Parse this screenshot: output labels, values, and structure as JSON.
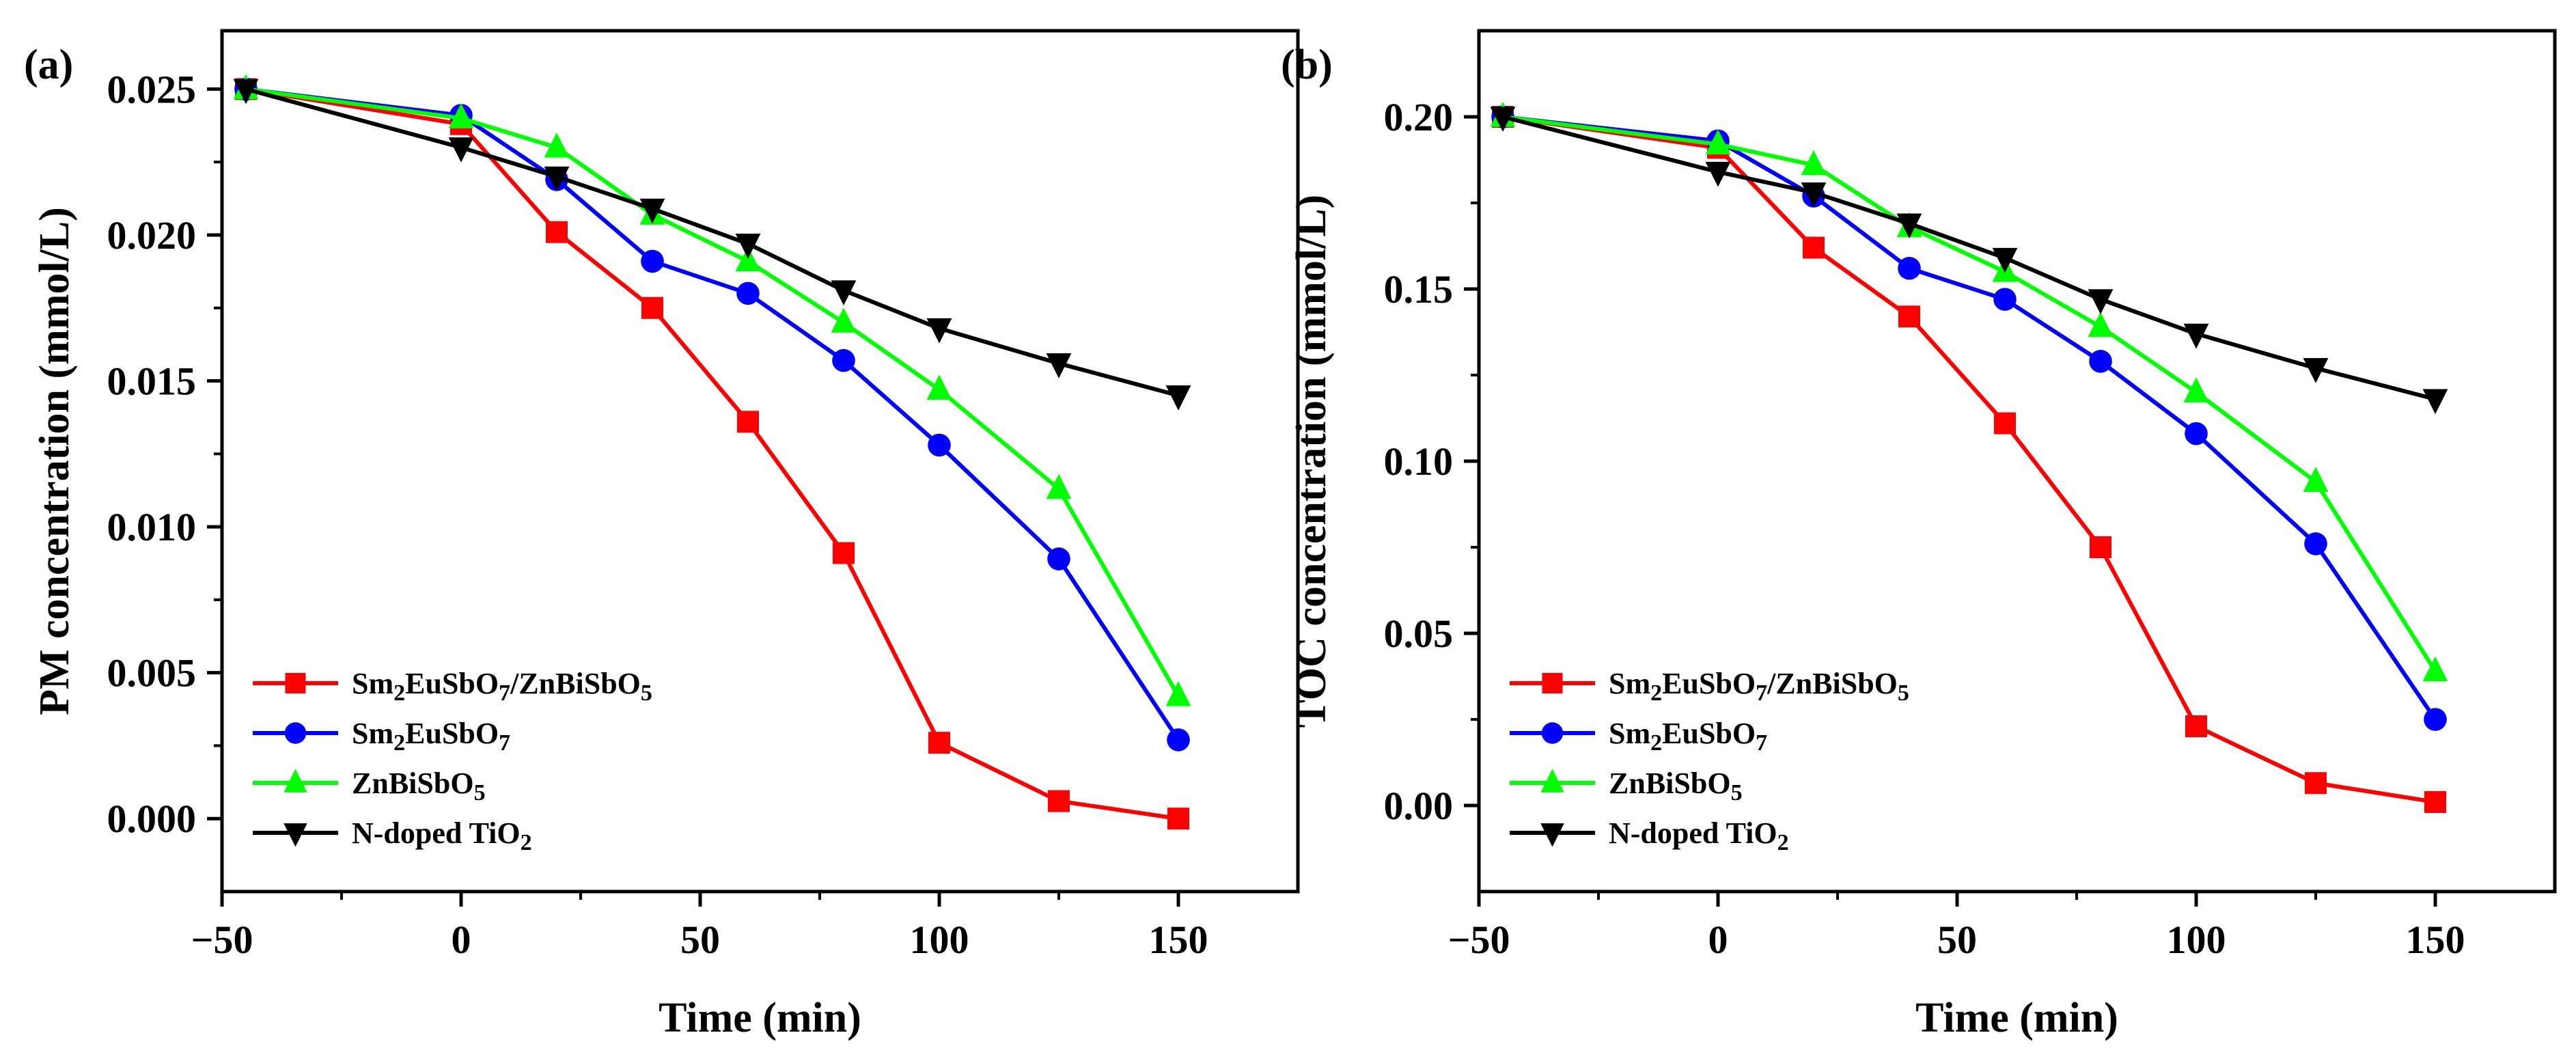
{
  "chart_data": [
    {
      "type": "line",
      "panel_label": "(a)",
      "xlabel": "Time (min)",
      "ylabel": "PM concentration (mmol/L)",
      "xlim": [
        -50,
        175
      ],
      "ylim": [
        -0.0025,
        0.027
      ],
      "xticks": [
        -50,
        0,
        50,
        100,
        150
      ],
      "xtick_labels": [
        "−50",
        "0",
        "50",
        "100",
        "150"
      ],
      "yticks": [
        0,
        0.005,
        0.01,
        0.015,
        0.02,
        0.025
      ],
      "ytick_labels": [
        "0.000",
        "0.005",
        "0.010",
        "0.015",
        "0.020",
        "0.025"
      ],
      "legend_position": "bottom-left",
      "x": [
        -45,
        0,
        20,
        40,
        60,
        80,
        100,
        125,
        150
      ],
      "series": [
        {
          "name": "Sm2EuSbO7/ZnBiSbO5",
          "label_parts": [
            [
              "Sm",
              ""
            ],
            [
              "2",
              "sub"
            ],
            [
              "EuSbO",
              ""
            ],
            [
              "7",
              "sub"
            ],
            [
              "/ZnBiSbO",
              ""
            ],
            [
              "5",
              "sub"
            ]
          ],
          "color": "#ff0000",
          "marker": "square",
          "values": [
            0.025,
            0.0238,
            0.0201,
            0.0175,
            0.0136,
            0.0091,
            0.0026,
            0.0006,
            0.0
          ]
        },
        {
          "name": "Sm2EuSbO7",
          "label_parts": [
            [
              "Sm",
              ""
            ],
            [
              "2",
              "sub"
            ],
            [
              "EuSbO",
              ""
            ],
            [
              "7",
              "sub"
            ]
          ],
          "color": "#0000ff",
          "marker": "circle",
          "values": [
            0.025,
            0.0241,
            0.0219,
            0.0191,
            0.018,
            0.0157,
            0.0128,
            0.0089,
            0.0027
          ]
        },
        {
          "name": "ZnBiSbO5",
          "label_parts": [
            [
              "ZnBiSbO",
              ""
            ],
            [
              "5",
              "sub"
            ]
          ],
          "color": "#00ff00",
          "marker": "triangle-up",
          "values": [
            0.025,
            0.024,
            0.023,
            0.0207,
            0.0191,
            0.017,
            0.0147,
            0.0113,
            0.0042
          ]
        },
        {
          "name": "N-doped TiO2",
          "label_parts": [
            [
              "N-doped TiO",
              ""
            ],
            [
              "2",
              "sub"
            ]
          ],
          "color": "#000000",
          "marker": "triangle-down",
          "values": [
            0.025,
            0.023,
            0.022,
            0.0209,
            0.0197,
            0.0181,
            0.0168,
            0.0156,
            0.0145
          ]
        }
      ]
    },
    {
      "type": "line",
      "panel_label": "(b)",
      "xlabel": "Time (min)",
      "ylabel": "TOC concentration (mmol/L)",
      "xlim": [
        -50,
        175
      ],
      "ylim": [
        -0.025,
        0.225
      ],
      "xticks": [
        -50,
        0,
        50,
        100,
        150
      ],
      "xtick_labels": [
        "−50",
        "0",
        "50",
        "100",
        "150"
      ],
      "yticks": [
        0,
        0.05,
        0.1,
        0.15,
        0.2
      ],
      "ytick_labels": [
        "0.00",
        "0.05",
        "0.10",
        "0.15",
        "0.20"
      ],
      "legend_position": "bottom-left",
      "x": [
        -45,
        0,
        20,
        40,
        60,
        80,
        100,
        125,
        150
      ],
      "series": [
        {
          "name": "Sm2EuSbO7/ZnBiSbO5",
          "label_parts": [
            [
              "Sm",
              ""
            ],
            [
              "2",
              "sub"
            ],
            [
              "EuSbO",
              ""
            ],
            [
              "7",
              "sub"
            ],
            [
              "/ZnBiSbO",
              ""
            ],
            [
              "5",
              "sub"
            ]
          ],
          "color": "#ff0000",
          "marker": "square",
          "values": [
            0.2,
            0.191,
            0.162,
            0.142,
            0.111,
            0.075,
            0.023,
            0.0065,
            0.001
          ]
        },
        {
          "name": "Sm2EuSbO7",
          "label_parts": [
            [
              "Sm",
              ""
            ],
            [
              "2",
              "sub"
            ],
            [
              "EuSbO",
              ""
            ],
            [
              "7",
              "sub"
            ]
          ],
          "color": "#0000ff",
          "marker": "circle",
          "values": [
            0.2,
            0.193,
            0.177,
            0.156,
            0.147,
            0.129,
            0.108,
            0.076,
            0.025
          ]
        },
        {
          "name": "ZnBiSbO5",
          "label_parts": [
            [
              "ZnBiSbO",
              ""
            ],
            [
              "5",
              "sub"
            ]
          ],
          "color": "#00ff00",
          "marker": "triangle-up",
          "values": [
            0.2,
            0.192,
            0.186,
            0.168,
            0.155,
            0.139,
            0.12,
            0.094,
            0.039
          ]
        },
        {
          "name": "N-doped TiO2",
          "label_parts": [
            [
              "N-doped TiO",
              ""
            ],
            [
              "2",
              "sub"
            ]
          ],
          "color": "#000000",
          "marker": "triangle-down",
          "values": [
            0.2,
            0.184,
            0.178,
            0.169,
            0.159,
            0.147,
            0.137,
            0.127,
            0.118
          ]
        }
      ]
    }
  ]
}
